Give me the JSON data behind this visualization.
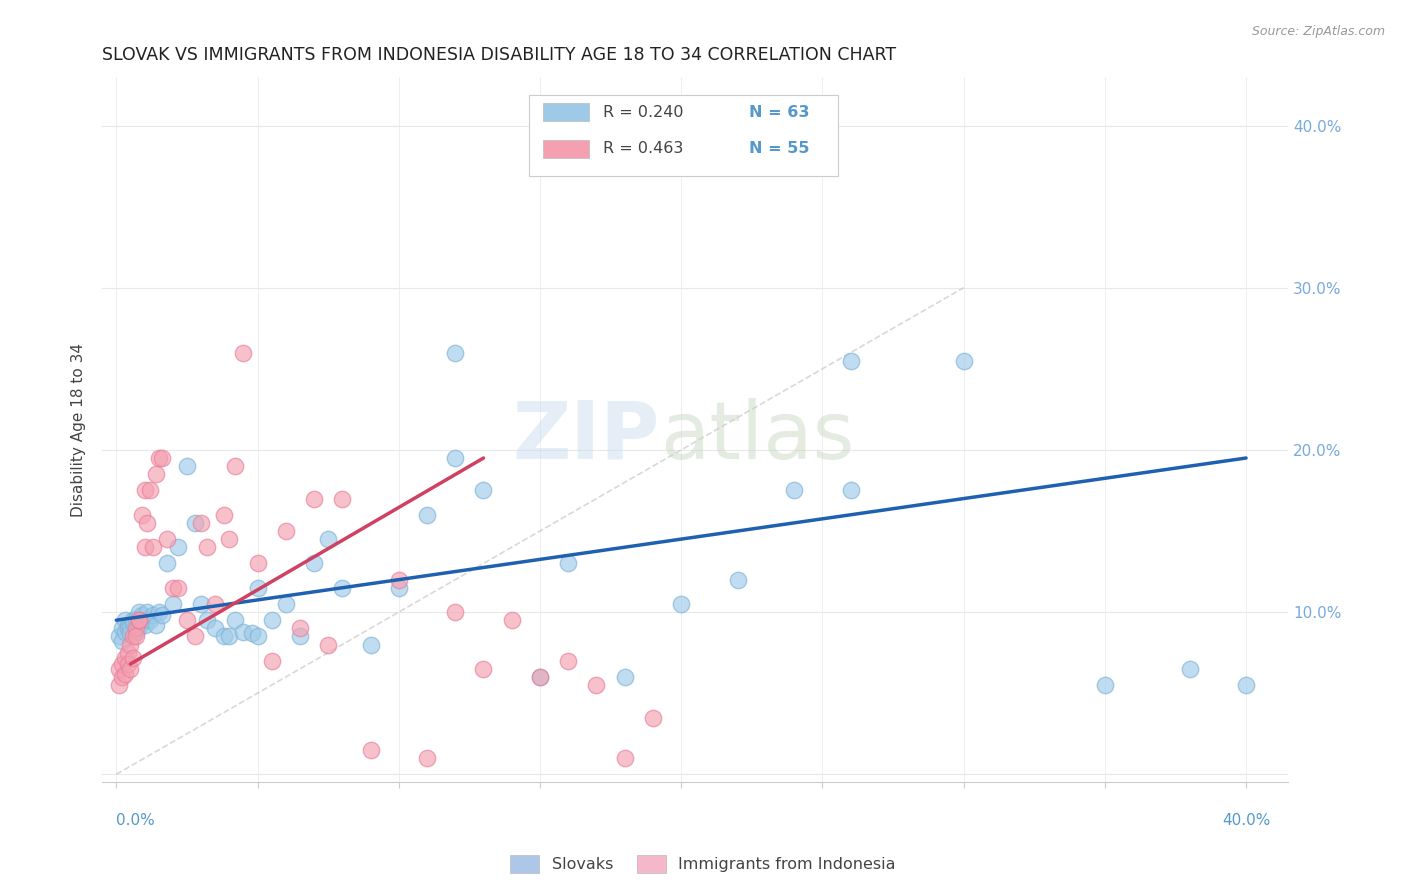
{
  "title": "SLOVAK VS IMMIGRANTS FROM INDONESIA DISABILITY AGE 18 TO 34 CORRELATION CHART",
  "source": "Source: ZipAtlas.com",
  "ylabel": "Disability Age 18 to 34",
  "legend_entries": [
    {
      "r": "R = 0.240",
      "n": "N = 63",
      "color": "#aec6e8"
    },
    {
      "r": "R = 0.463",
      "n": "N = 55",
      "color": "#f4b8c8"
    }
  ],
  "legend_bottom": [
    "Slovaks",
    "Immigrants from Indonesia"
  ],
  "legend_bottom_colors": [
    "#aec6e8",
    "#f4b8c8"
  ],
  "blue_scatter_x": [
    0.001,
    0.002,
    0.002,
    0.003,
    0.003,
    0.004,
    0.004,
    0.005,
    0.005,
    0.006,
    0.006,
    0.007,
    0.007,
    0.008,
    0.008,
    0.009,
    0.01,
    0.01,
    0.011,
    0.012,
    0.013,
    0.014,
    0.015,
    0.016,
    0.018,
    0.02,
    0.022,
    0.025,
    0.028,
    0.03,
    0.032,
    0.035,
    0.038,
    0.04,
    0.042,
    0.045,
    0.048,
    0.05,
    0.055,
    0.06,
    0.065,
    0.07,
    0.075,
    0.08,
    0.09,
    0.1,
    0.11,
    0.12,
    0.13,
    0.15,
    0.16,
    0.18,
    0.2,
    0.22,
    0.24,
    0.26,
    0.3,
    0.35,
    0.38,
    0.4,
    0.26,
    0.12,
    0.05
  ],
  "blue_scatter_y": [
    0.085,
    0.09,
    0.082,
    0.095,
    0.088,
    0.092,
    0.09,
    0.091,
    0.087,
    0.093,
    0.095,
    0.088,
    0.096,
    0.091,
    0.1,
    0.098,
    0.095,
    0.092,
    0.1,
    0.095,
    0.098,
    0.092,
    0.1,
    0.098,
    0.13,
    0.105,
    0.14,
    0.19,
    0.155,
    0.105,
    0.095,
    0.09,
    0.085,
    0.085,
    0.095,
    0.088,
    0.087,
    0.085,
    0.095,
    0.105,
    0.085,
    0.13,
    0.145,
    0.115,
    0.08,
    0.115,
    0.16,
    0.26,
    0.175,
    0.06,
    0.13,
    0.06,
    0.105,
    0.12,
    0.175,
    0.255,
    0.255,
    0.055,
    0.065,
    0.055,
    0.175,
    0.195,
    0.115
  ],
  "pink_scatter_x": [
    0.001,
    0.001,
    0.002,
    0.002,
    0.003,
    0.003,
    0.004,
    0.004,
    0.005,
    0.005,
    0.006,
    0.006,
    0.007,
    0.007,
    0.008,
    0.008,
    0.009,
    0.01,
    0.01,
    0.011,
    0.012,
    0.013,
    0.014,
    0.015,
    0.016,
    0.018,
    0.02,
    0.022,
    0.025,
    0.028,
    0.03,
    0.032,
    0.035,
    0.038,
    0.04,
    0.042,
    0.045,
    0.05,
    0.055,
    0.06,
    0.065,
    0.07,
    0.075,
    0.08,
    0.09,
    0.1,
    0.11,
    0.12,
    0.13,
    0.14,
    0.15,
    0.16,
    0.17,
    0.18,
    0.19
  ],
  "pink_scatter_y": [
    0.055,
    0.065,
    0.06,
    0.068,
    0.062,
    0.072,
    0.075,
    0.068,
    0.065,
    0.08,
    0.085,
    0.072,
    0.09,
    0.085,
    0.095,
    0.095,
    0.16,
    0.175,
    0.14,
    0.155,
    0.175,
    0.14,
    0.185,
    0.195,
    0.195,
    0.145,
    0.115,
    0.115,
    0.095,
    0.085,
    0.155,
    0.14,
    0.105,
    0.16,
    0.145,
    0.19,
    0.26,
    0.13,
    0.07,
    0.15,
    0.09,
    0.17,
    0.08,
    0.17,
    0.015,
    0.12,
    0.01,
    0.1,
    0.065,
    0.095,
    0.06,
    0.07,
    0.055,
    0.01,
    0.035
  ],
  "blue_line_x": [
    0.0,
    0.4
  ],
  "blue_line_y": [
    0.095,
    0.195
  ],
  "pink_line_x": [
    0.005,
    0.13
  ],
  "pink_line_y": [
    0.068,
    0.195
  ],
  "diag_line_x": [
    0.0,
    0.3
  ],
  "diag_line_y": [
    0.0,
    0.3
  ],
  "xlim": [
    -0.005,
    0.415
  ],
  "ylim": [
    -0.005,
    0.43
  ],
  "ytick_vals": [
    0.0,
    0.1,
    0.2,
    0.3,
    0.4
  ],
  "xtick_vals": [
    0.0,
    0.05,
    0.1,
    0.15,
    0.2,
    0.25,
    0.3,
    0.35,
    0.4
  ],
  "blue_dot_color": "#9ecae8",
  "blue_dot_edge": "#7fb3d8",
  "pink_dot_color": "#f4a0b0",
  "pink_dot_edge": "#e8809a",
  "blue_line_color": "#2060b0",
  "pink_line_color": "#d04060",
  "diag_color": "#c8c8c8",
  "grid_color": "#e8e8e8",
  "title_color": "#222222",
  "axis_label_color": "#5599cc",
  "right_tick_color": "#77aadd"
}
